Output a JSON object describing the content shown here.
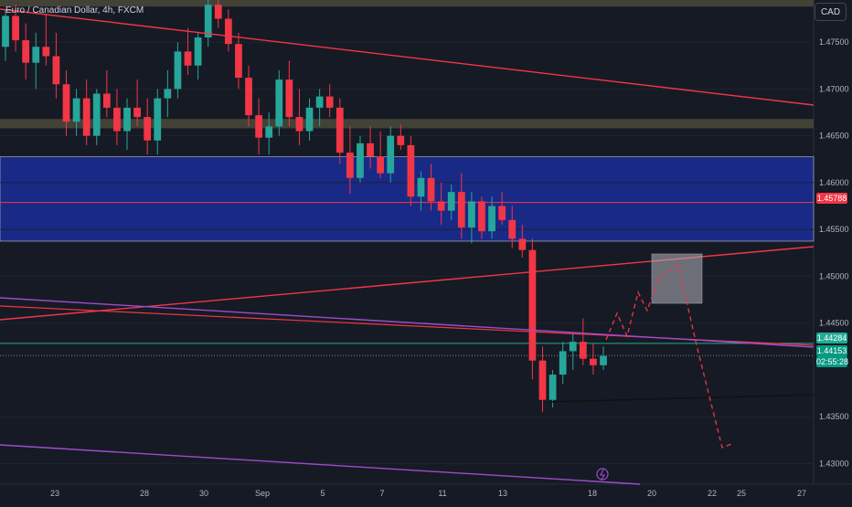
{
  "header": {
    "symbol_title": "Euro / Canadian Dollar, 4h, FXCM",
    "currency": "CAD"
  },
  "price_axis": {
    "ticks": [
      "1.47500",
      "1.47000",
      "1.46500",
      "1.46000",
      "1.45500",
      "1.45000",
      "1.44500",
      "1.43500",
      "1.43000"
    ],
    "tags": [
      {
        "value": "1.45788",
        "color": "#f23645"
      },
      {
        "value": "1.44284",
        "color": "#22ab94"
      },
      {
        "value": "1.44153",
        "color": "#089981"
      },
      {
        "value": "02:55:28",
        "color": "#089981"
      }
    ]
  },
  "time_axis": {
    "labels": [
      "23",
      "28",
      "30",
      "Sep",
      "5",
      "7",
      "11",
      "13",
      "18",
      "20",
      "22",
      "25",
      "27"
    ]
  },
  "colors": {
    "bull": "#26a69a",
    "bear": "#f23645",
    "zone": "#1a2a8c",
    "trend": "#f23645",
    "channel": "#9c4dcc",
    "projection": "#f23645"
  },
  "chart_data": {
    "type": "candlestick",
    "title": "Euro / Canadian Dollar, 4h, FXCM",
    "ylim": [
      1.4278,
      1.4795
    ],
    "x_labels": [
      "23",
      "28",
      "30",
      "Sep",
      "5",
      "7",
      "11",
      "13",
      "18",
      "20",
      "22",
      "25",
      "27"
    ],
    "candles": [
      [
        1.4745,
        1.4785,
        1.473,
        1.4778
      ],
      [
        1.4778,
        1.479,
        1.474,
        1.4752
      ],
      [
        1.4752,
        1.477,
        1.471,
        1.4728
      ],
      [
        1.4728,
        1.476,
        1.47,
        1.4745
      ],
      [
        1.4745,
        1.478,
        1.4725,
        1.4735
      ],
      [
        1.4735,
        1.476,
        1.469,
        1.4705
      ],
      [
        1.4705,
        1.472,
        1.465,
        1.4665
      ],
      [
        1.4665,
        1.47,
        1.465,
        1.469
      ],
      [
        1.469,
        1.471,
        1.464,
        1.465
      ],
      [
        1.465,
        1.47,
        1.464,
        1.4695
      ],
      [
        1.4695,
        1.472,
        1.467,
        1.468
      ],
      [
        1.468,
        1.47,
        1.464,
        1.4655
      ],
      [
        1.4655,
        1.469,
        1.4635,
        1.468
      ],
      [
        1.468,
        1.471,
        1.466,
        1.467
      ],
      [
        1.467,
        1.469,
        1.463,
        1.4645
      ],
      [
        1.4645,
        1.47,
        1.463,
        1.469
      ],
      [
        1.469,
        1.472,
        1.467,
        1.47
      ],
      [
        1.47,
        1.475,
        1.469,
        1.474
      ],
      [
        1.474,
        1.4765,
        1.4715,
        1.4725
      ],
      [
        1.4725,
        1.476,
        1.471,
        1.4755
      ],
      [
        1.4755,
        1.4795,
        1.4745,
        1.479
      ],
      [
        1.479,
        1.4795,
        1.4765,
        1.4775
      ],
      [
        1.4775,
        1.4785,
        1.474,
        1.4748
      ],
      [
        1.4748,
        1.476,
        1.47,
        1.4712
      ],
      [
        1.4712,
        1.4725,
        1.466,
        1.4672
      ],
      [
        1.4672,
        1.469,
        1.463,
        1.4648
      ],
      [
        1.4648,
        1.4675,
        1.463,
        1.466
      ],
      [
        1.466,
        1.472,
        1.465,
        1.471
      ],
      [
        1.471,
        1.473,
        1.466,
        1.467
      ],
      [
        1.467,
        1.47,
        1.464,
        1.4655
      ],
      [
        1.4655,
        1.469,
        1.4645,
        1.468
      ],
      [
        1.468,
        1.47,
        1.466,
        1.4692
      ],
      [
        1.4692,
        1.4705,
        1.467,
        1.468
      ],
      [
        1.468,
        1.469,
        1.462,
        1.4632
      ],
      [
        1.4632,
        1.466,
        1.4588,
        1.4605
      ],
      [
        1.4605,
        1.465,
        1.46,
        1.4642
      ],
      [
        1.4642,
        1.466,
        1.4615,
        1.4628
      ],
      [
        1.4628,
        1.4655,
        1.4605,
        1.461
      ],
      [
        1.461,
        1.466,
        1.46,
        1.465
      ],
      [
        1.465,
        1.4662,
        1.4635,
        1.464
      ],
      [
        1.464,
        1.465,
        1.4575,
        1.4585
      ],
      [
        1.4585,
        1.4612,
        1.457,
        1.4605
      ],
      [
        1.4605,
        1.462,
        1.457,
        1.458
      ],
      [
        1.458,
        1.46,
        1.4555,
        1.457
      ],
      [
        1.457,
        1.4598,
        1.456,
        1.459
      ],
      [
        1.459,
        1.461,
        1.454,
        1.4552
      ],
      [
        1.4552,
        1.459,
        1.4535,
        1.458
      ],
      [
        1.458,
        1.4585,
        1.454,
        1.4548
      ],
      [
        1.4548,
        1.4585,
        1.454,
        1.4575
      ],
      [
        1.4575,
        1.459,
        1.4555,
        1.456
      ],
      [
        1.456,
        1.4575,
        1.453,
        1.454
      ],
      [
        1.454,
        1.4555,
        1.452,
        1.4528
      ],
      [
        1.4528,
        1.454,
        1.439,
        1.441
      ],
      [
        1.441,
        1.4425,
        1.4355,
        1.4368
      ],
      [
        1.4368,
        1.44,
        1.436,
        1.4395
      ],
      [
        1.4395,
        1.443,
        1.4385,
        1.442
      ],
      [
        1.442,
        1.444,
        1.44,
        1.443
      ],
      [
        1.443,
        1.4455,
        1.4405,
        1.4412
      ],
      [
        1.4412,
        1.4428,
        1.4395,
        1.4405
      ],
      [
        1.4405,
        1.4425,
        1.44,
        1.4415
      ]
    ],
    "horizontal_lines": [
      {
        "price": 1.45788,
        "color": "#f23645"
      },
      {
        "price": 1.44284,
        "color": "#22ab94"
      },
      {
        "price": 1.44153,
        "color": "#888888",
        "dashed": true
      }
    ],
    "zones": [
      {
        "from": 1.45375,
        "to": 1.46275,
        "color": "#1a2a8c"
      },
      {
        "from": 1.4788,
        "to": 1.4796,
        "color": "#4a4a3a"
      },
      {
        "from": 1.4658,
        "to": 1.4668,
        "color": "#4a4a3a"
      }
    ]
  }
}
